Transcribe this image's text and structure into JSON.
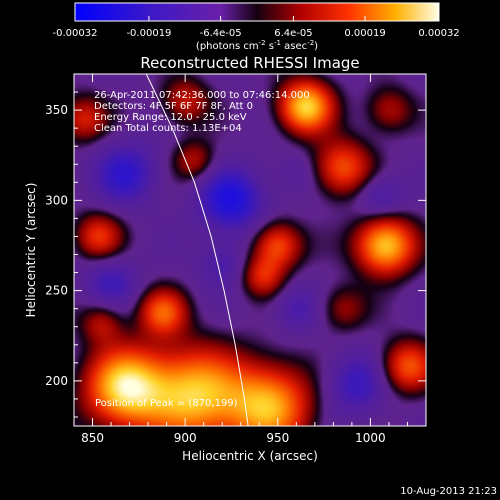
{
  "chart_data": {
    "type": "heatmap",
    "title": "Reconstructed RHESSI Image",
    "xlabel": "Heliocentric X (arcsec)",
    "ylabel": "Heliocentric Y (arcsec)",
    "xlim": [
      840,
      1030
    ],
    "ylim": [
      175,
      370
    ],
    "x_ticks": [
      850,
      900,
      950,
      1000
    ],
    "y_ticks": [
      200,
      250,
      300,
      350
    ],
    "colorbar": {
      "ticks": [
        "-0.00032",
        "-0.00019",
        "-6.4e-05",
        "6.4e-05",
        "0.00019",
        "0.00032"
      ],
      "tick_values": [
        -0.00032,
        -0.00019,
        -6.4e-05,
        6.4e-05,
        0.00019,
        0.00032
      ],
      "range": [
        -0.00032,
        0.00032
      ],
      "unit_prefix": "(photons cm",
      "unit_exp1": "-2",
      "unit_mid": " s",
      "unit_exp2": "-1",
      "unit_mid2": " asec",
      "unit_exp3": "-2",
      "unit_suffix": ")"
    },
    "annotations": [
      "26-Apr-2011 07:42:36.000 to 07:46:14.000",
      "Detectors: 4F 5F 6F 7F 8F, Att 0",
      "Energy Range: 12.0 - 25.0 keV",
      "Clean     Total counts: 1.13E+04"
    ],
    "peak_label": "Position of Peak = (870,199)",
    "peak_position": [
      870,
      199
    ],
    "limb_curve": [
      [
        879,
        370
      ],
      [
        893,
        340
      ],
      [
        905,
        310
      ],
      [
        914,
        280
      ],
      [
        921,
        250
      ],
      [
        927,
        220
      ],
      [
        932,
        190
      ],
      [
        934,
        175
      ]
    ],
    "blobs": [
      {
        "x": 868,
        "y": 196,
        "w": 1.0,
        "s": 15
      },
      {
        "x": 905,
        "y": 192,
        "w": 0.9,
        "s": 18
      },
      {
        "x": 945,
        "y": 186,
        "w": 0.85,
        "s": 16
      },
      {
        "x": 965,
        "y": 352,
        "w": 0.95,
        "s": 10
      },
      {
        "x": 1008,
        "y": 275,
        "w": 0.95,
        "s": 11
      },
      {
        "x": 985,
        "y": 318,
        "w": 0.6,
        "s": 11
      },
      {
        "x": 950,
        "y": 275,
        "w": 0.6,
        "s": 9
      },
      {
        "x": 942,
        "y": 258,
        "w": 0.45,
        "s": 8
      },
      {
        "x": 888,
        "y": 238,
        "w": 0.6,
        "s": 9
      },
      {
        "x": 853,
        "y": 280,
        "w": 0.5,
        "s": 9
      },
      {
        "x": 845,
        "y": 345,
        "w": 0.45,
        "s": 9
      },
      {
        "x": 900,
        "y": 355,
        "w": 0.4,
        "s": 9
      },
      {
        "x": 905,
        "y": 322,
        "w": 0.35,
        "s": 8
      },
      {
        "x": 1020,
        "y": 208,
        "w": 0.6,
        "s": 10
      },
      {
        "x": 855,
        "y": 232,
        "w": 0.35,
        "s": 8
      },
      {
        "x": 985,
        "y": 240,
        "w": 0.3,
        "s": 9
      },
      {
        "x": 1010,
        "y": 350,
        "w": 0.35,
        "s": 9
      },
      {
        "x": 925,
        "y": 300,
        "w": -0.55,
        "s": 12
      },
      {
        "x": 868,
        "y": 315,
        "w": -0.4,
        "s": 12
      },
      {
        "x": 860,
        "y": 255,
        "w": -0.3,
        "s": 10
      },
      {
        "x": 992,
        "y": 198,
        "w": -0.35,
        "s": 12
      },
      {
        "x": 1005,
        "y": 302,
        "w": -0.3,
        "s": 9
      },
      {
        "x": 920,
        "y": 265,
        "w": -0.25,
        "s": 9
      },
      {
        "x": 960,
        "y": 240,
        "w": -0.25,
        "s": 9
      },
      {
        "x": 960,
        "y": 315,
        "w": -0.15,
        "s": 8
      }
    ]
  },
  "footer": {
    "date": "10-Aug-2013 21:23"
  }
}
